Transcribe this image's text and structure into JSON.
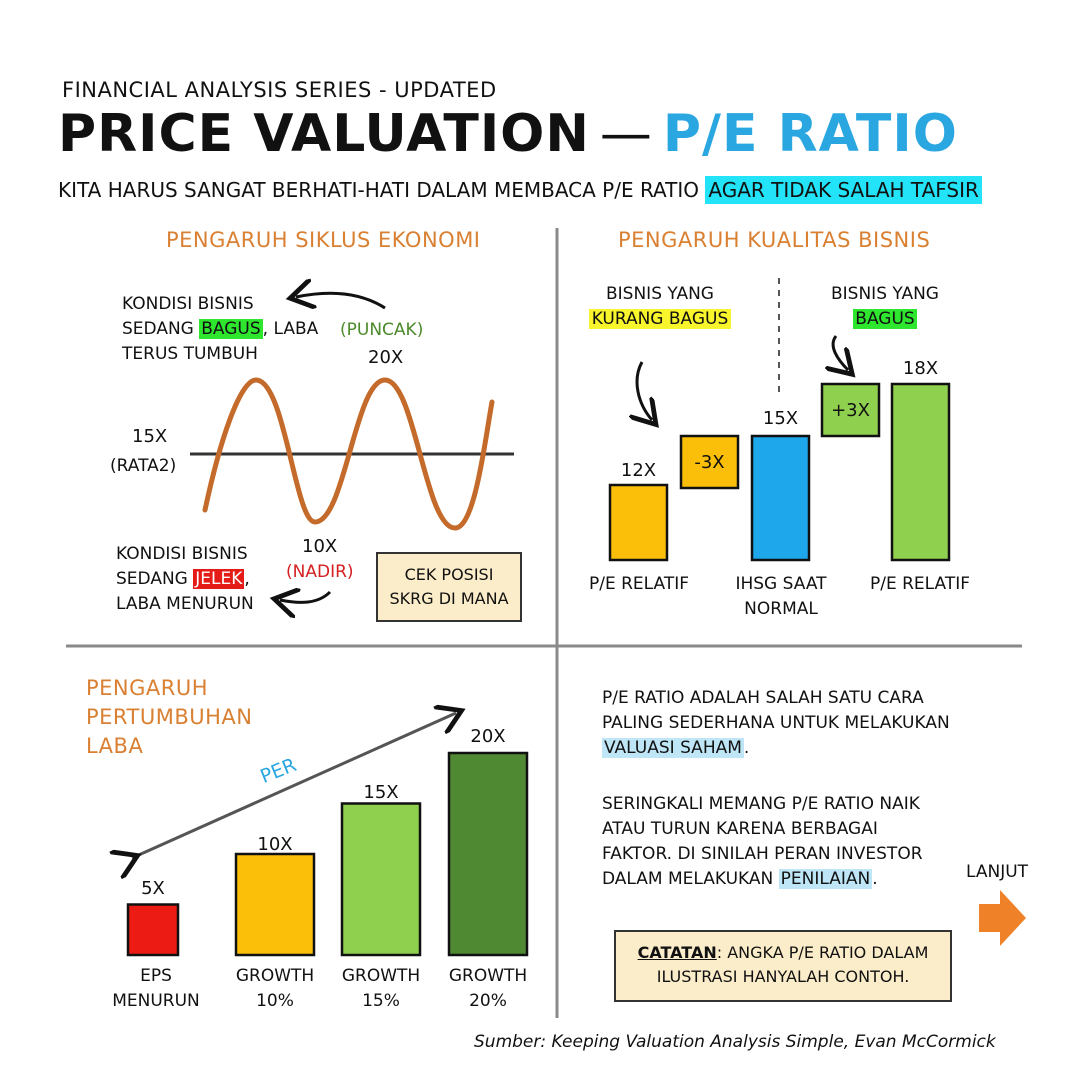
{
  "header": {
    "series": "FINANCIAL ANALYSIS SERIES - UPDATED",
    "title_main": "PRICE VALUATION",
    "title_dash": "—",
    "title_accent": "P/E RATIO",
    "subtitle_plain": "KITA HARUS SANGAT BERHATI-HATI DALAM MEMBACA P/E RATIO",
    "subtitle_highlight": "AGAR TIDAK SALAH TAFSIR"
  },
  "cycle": {
    "heading": "PENGARUH SIKLUS EKONOMI",
    "good_1": "KONDISI BISNIS",
    "good_2a": "SEDANG ",
    "good_2b": "BAGUS",
    "good_2c": ", LABA",
    "good_3": "TERUS TUMBUH",
    "peak_label": "(PUNCAK)",
    "peak_value": "20x",
    "avg_value": "15x",
    "avg_label": "(RATA2)",
    "trough_value": "10x",
    "trough_label": "(NADIR)",
    "bad_1": "KONDISI BISNIS",
    "bad_2a": "SEDANG ",
    "bad_2b": "JELEK",
    "bad_2c": ",",
    "bad_3": "LABA MENURUN",
    "check_1": "CEK POSISI",
    "check_2": "SKRG DI MANA"
  },
  "quality": {
    "heading": "PENGARUH KUALITAS BISNIS",
    "weak_1": "BISNIS YANG",
    "weak_2": "KURANG BAGUS",
    "strong_1": "BISNIS YANG",
    "strong_2": "BAGUS",
    "bars": [
      {
        "value_label": "12x",
        "caption_1": "P/E RELATIF",
        "caption_2": "",
        "color": "#fbbf0a"
      },
      {
        "value_label": "-3x",
        "color": "#fbbf0a"
      },
      {
        "value_label": "15x",
        "caption_1": "IHSG SAAT",
        "caption_2": "NORMAL",
        "color": "#1ea7ea"
      },
      {
        "value_label": "+3x",
        "color": "#8fd14f"
      },
      {
        "value_label": "18x",
        "caption_1": "P/E RELATIF",
        "caption_2": "",
        "color": "#8fd14f"
      }
    ]
  },
  "growth": {
    "heading_1": "PENGARUH",
    "heading_2": "PERTUMBUHAN",
    "heading_3": "LABA",
    "arrow_label": "PER",
    "bars": [
      {
        "value": 5,
        "value_label": "5x",
        "caption_1": "EPS",
        "caption_2": "MENURUN",
        "color": "#ec1c14"
      },
      {
        "value": 10,
        "value_label": "10x",
        "caption_1": "GROWTH",
        "caption_2": "10%",
        "color": "#fbbf0a"
      },
      {
        "value": 15,
        "value_label": "15x",
        "caption_1": "GROWTH",
        "caption_2": "15%",
        "color": "#8fd14f"
      },
      {
        "value": 20,
        "value_label": "20x",
        "caption_1": "GROWTH",
        "caption_2": "20%",
        "color": "#4f8a33"
      }
    ]
  },
  "text_panel": {
    "p1_1": "P/E RATIO ADALAH SALAH SATU CARA",
    "p1_2": "PALING SEDERHANA UNTUK MELAKUKAN",
    "p1_3": "VALUASI SAHAM",
    "p1_3b": ".",
    "p2_1": "SERINGKALI MEMANG P/E RATIO NAIK",
    "p2_2": "ATAU TURUN KARENA BERBAGAI",
    "p2_3": "FAKTOR. DI SINILAH PERAN INVESTOR",
    "p2_4a": "DALAM MELAKUKAN ",
    "p2_4b": "PENILAIAN",
    "p2_4c": ".",
    "next_label": "LANJUT",
    "note_label": "CATATAN",
    "note_rest": ": ANGKA P/E RATIO DALAM",
    "note_line2": "ILUSTRASI HANYALAH CONTOH."
  },
  "footer": {
    "source": "Sumber: Keeping Valuation Analysis Simple, Evan McCormick"
  },
  "colors": {
    "accent_blue": "#2aa7e0",
    "heading_orange": "#d98032",
    "wave_brown": "#c46a2a",
    "arrow_orange": "#ef8228",
    "divider_gray": "#8a8a8a"
  }
}
